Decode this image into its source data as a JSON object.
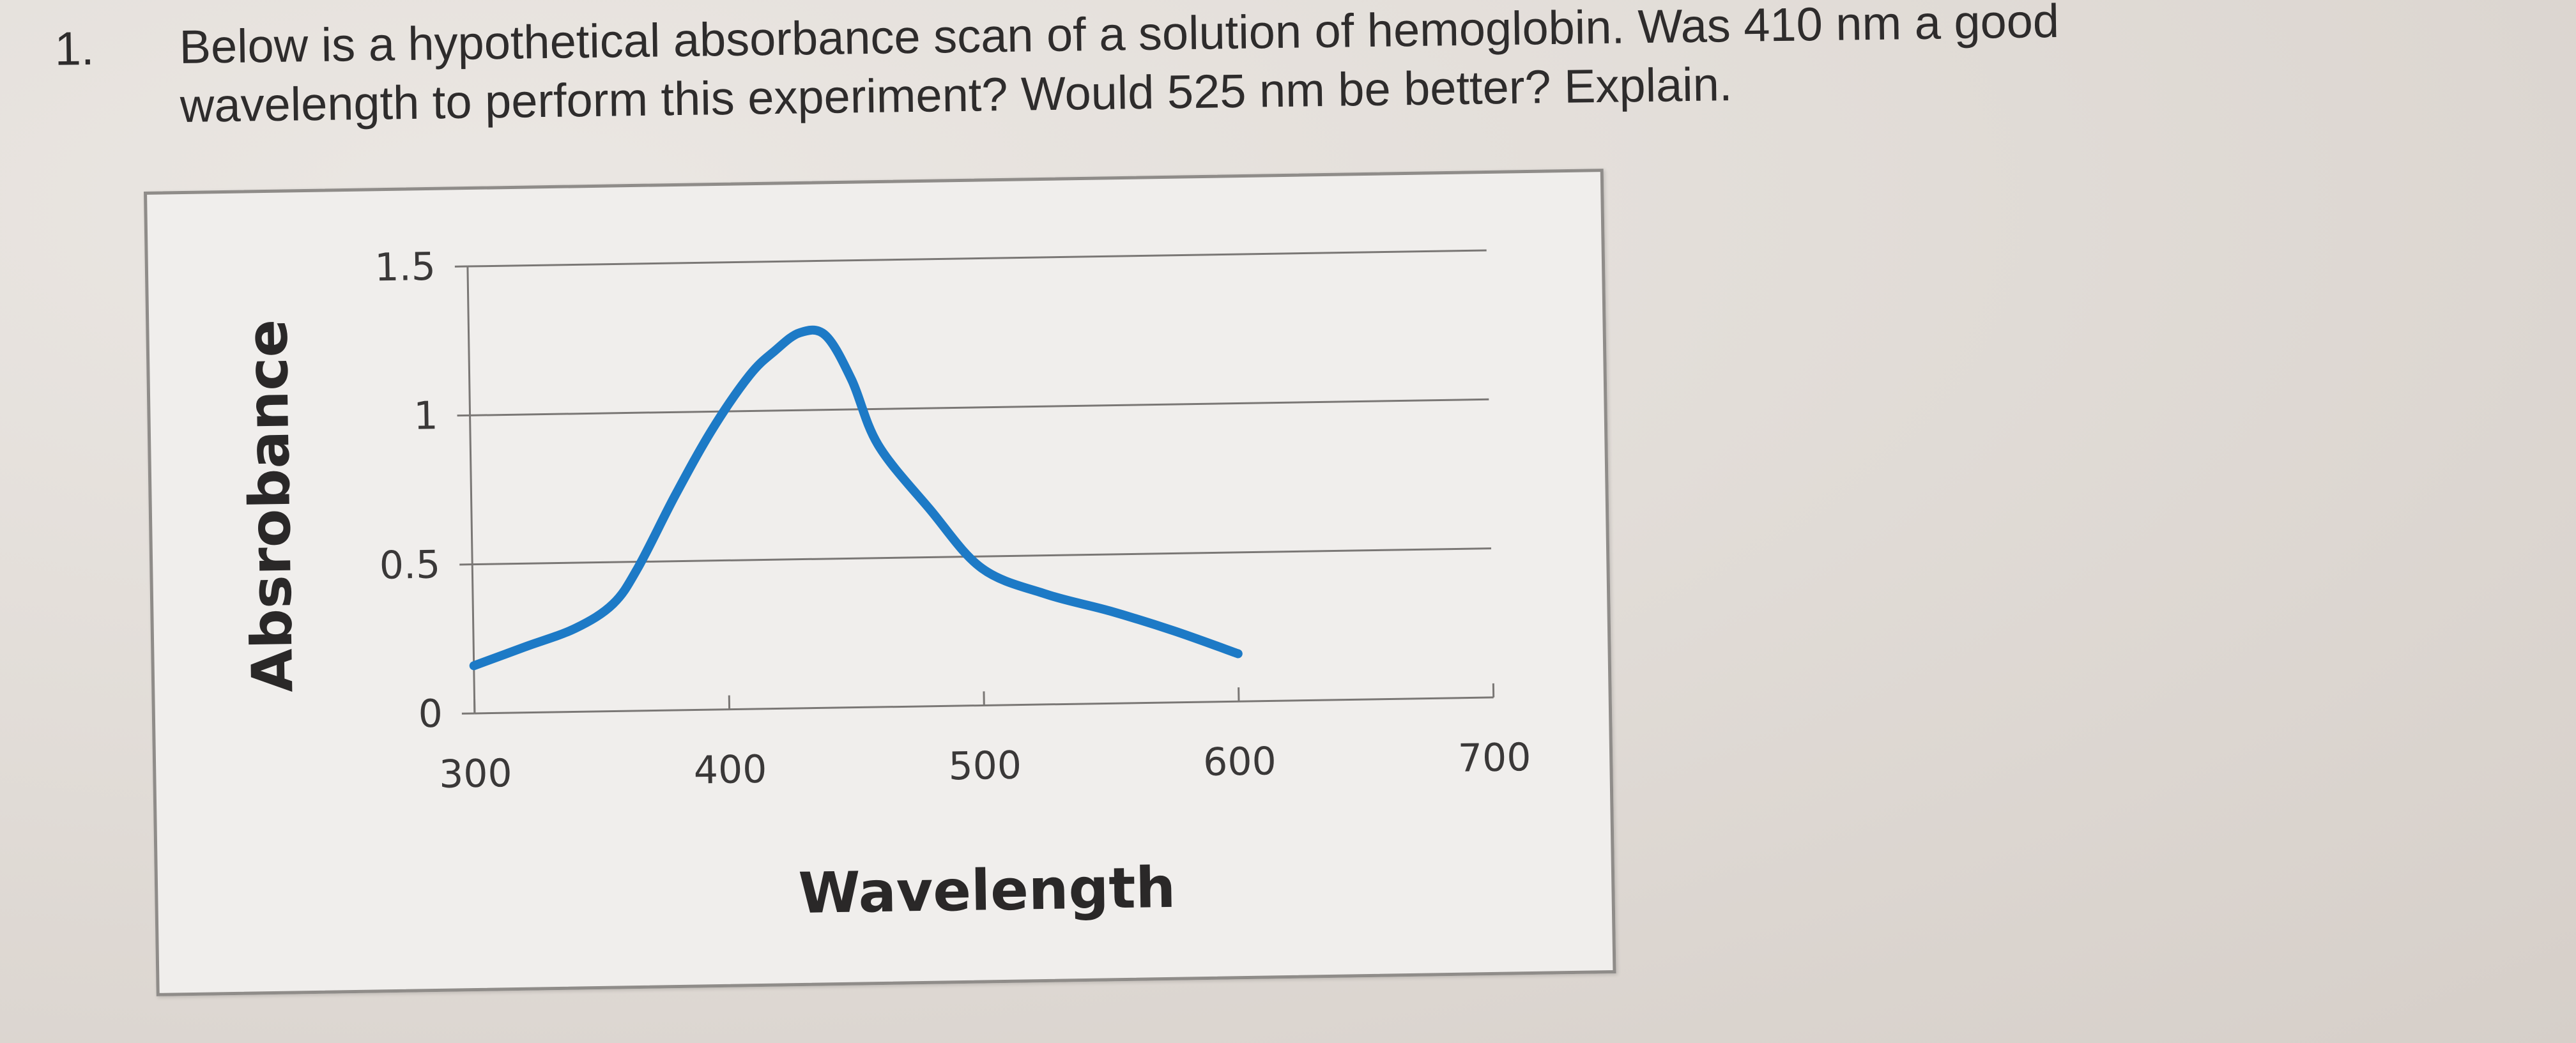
{
  "question": {
    "number": "1.",
    "line1": "Below is a hypothetical absorbance scan of a solution of hemoglobin. Was 410 nm a good",
    "line2": "wavelength to perform this experiment? Would 525 nm be better? Explain."
  },
  "chart_data": {
    "type": "line",
    "title": "",
    "xlabel": "Wavelength",
    "ylabel": "Absrobance",
    "xlim": [
      300,
      700
    ],
    "ylim": [
      0,
      1.5
    ],
    "x_ticks": [
      "300",
      "400",
      "500",
      "600",
      "700"
    ],
    "y_ticks": [
      "0",
      "0.5",
      "1",
      "1.5"
    ],
    "grid": "horizontal",
    "legend": "none",
    "series_color": "#1d7ac6",
    "series": [
      {
        "x": [
          300,
          320,
          340,
          355,
          365,
          380,
          395,
          410,
          420,
          430,
          440,
          450,
          460,
          480,
          500,
          525,
          550,
          575,
          600
        ],
        "y": [
          0.16,
          0.22,
          0.28,
          0.36,
          0.48,
          0.72,
          0.94,
          1.12,
          1.2,
          1.26,
          1.25,
          1.1,
          0.88,
          0.66,
          0.46,
          0.37,
          0.31,
          0.24,
          0.16
        ]
      }
    ]
  }
}
